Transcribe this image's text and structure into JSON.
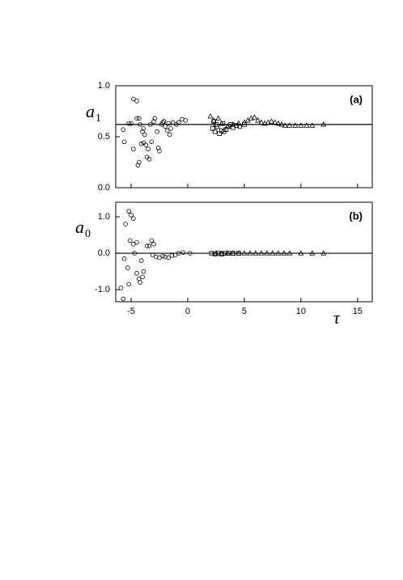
{
  "chart_data": [
    {
      "type": "scatter",
      "annotation": "(a)",
      "ylabel": "a",
      "ylabel_sub": "1",
      "xlim": [
        -6.36,
        16.3
      ],
      "ylim": [
        0,
        1
      ],
      "xticks": [
        -5,
        0,
        5,
        10,
        15
      ],
      "xtick_labels": false,
      "yticks": [
        {
          "value": 0,
          "label": "0.0"
        },
        {
          "value": 0.5,
          "label": "0.5"
        },
        {
          "value": 1,
          "label": "1.0"
        }
      ],
      "reference_line": 0.62,
      "series": [
        {
          "marker": "circle",
          "color": "#000000",
          "x": [
            -5.2,
            -5.0,
            -4.8,
            -4.5,
            -4.5,
            -4.8,
            -5.7,
            -5.6,
            -4.3,
            -4.2,
            -4.0,
            -3.9,
            -3.8,
            -4.1,
            -3.9,
            -3.7,
            -3.5,
            -4.3,
            -4.4,
            -3.6,
            -3.4,
            -3.3,
            -3.2,
            -3.0,
            -2.9,
            -2.7,
            -2.6,
            -2.5,
            -2.3,
            -2.2,
            -2.0,
            -1.8,
            -1.7,
            -1.5,
            -1.3,
            -1.0,
            -0.8,
            -0.5,
            -0.2,
            -1.6,
            -2.1
          ],
          "values": [
            0.63,
            0.63,
            0.87,
            0.85,
            0.68,
            0.38,
            0.57,
            0.45,
            0.68,
            0.62,
            0.55,
            0.58,
            0.52,
            0.43,
            0.44,
            0.42,
            0.38,
            0.25,
            0.22,
            0.3,
            0.28,
            0.62,
            0.45,
            0.65,
            0.68,
            0.55,
            0.39,
            0.36,
            0.62,
            0.64,
            0.6,
            0.56,
            0.63,
            0.58,
            0.64,
            0.62,
            0.64,
            0.67,
            0.66,
            0.52,
            0.65
          ]
        },
        {
          "marker": "square",
          "color": "#000000",
          "x": [
            2.2,
            2.4,
            2.6,
            2.8,
            3.0,
            3.2,
            3.4,
            3.6,
            2.5,
            3.8,
            4.0,
            4.3,
            4.6,
            5.0,
            2.3,
            3.1
          ],
          "values": [
            0.58,
            0.55,
            0.6,
            0.53,
            0.56,
            0.55,
            0.57,
            0.6,
            0.62,
            0.62,
            0.59,
            0.61,
            0.6,
            0.62,
            0.65,
            0.63
          ]
        },
        {
          "marker": "triangle",
          "color": "#000000",
          "x": [
            2.0,
            2.3,
            2.7,
            3.0,
            3.5,
            4.0,
            4.5,
            5.0,
            5.3,
            5.6,
            5.9,
            6.2,
            6.5,
            6.8,
            7.1,
            7.4,
            7.7,
            8.0,
            8.3,
            8.6,
            9.0,
            9.5,
            10.0,
            10.5,
            11.0,
            12.0
          ],
          "values": [
            0.7,
            0.66,
            0.68,
            0.63,
            0.6,
            0.62,
            0.63,
            0.64,
            0.66,
            0.68,
            0.69,
            0.66,
            0.64,
            0.63,
            0.64,
            0.65,
            0.64,
            0.63,
            0.62,
            0.61,
            0.61,
            0.61,
            0.61,
            0.61,
            0.61,
            0.62
          ]
        }
      ]
    },
    {
      "type": "scatter",
      "annotation": "(b)",
      "ylabel": "a",
      "ylabel_sub": "0",
      "xlabel": "τ",
      "xlim": [
        -6.36,
        16.3
      ],
      "ylim": [
        -1.33,
        1.4
      ],
      "xticks": [
        -5,
        0,
        5,
        10,
        15
      ],
      "xtick_labels": true,
      "yticks": [
        {
          "value": -1,
          "label": "-1.0"
        },
        {
          "value": 0,
          "label": "0.0"
        },
        {
          "value": 1,
          "label": "1.0"
        }
      ],
      "reference_line": 0,
      "series": [
        {
          "marker": "circle",
          "color": "#000000",
          "x": [
            -5.2,
            -5.0,
            -4.8,
            -5.5,
            -5.1,
            -4.8,
            -4.5,
            -5.6,
            -5.9,
            -5.7,
            -5.2,
            -5.3,
            -4.5,
            -4.3,
            -4.2,
            -4.0,
            -3.9,
            -4.1,
            -3.6,
            -3.4,
            -3.2,
            -3.0,
            -3.1,
            -2.8,
            -2.5,
            -2.2,
            -2.0,
            -1.7,
            -1.4,
            -1.1,
            -0.8,
            -0.4,
            0.2,
            -4.7
          ],
          "values": [
            1.15,
            1.05,
            0.95,
            0.8,
            0.35,
            0.25,
            0.3,
            -0.15,
            -0.95,
            -1.25,
            -0.85,
            -0.4,
            -0.55,
            -0.7,
            -0.8,
            -0.65,
            -0.5,
            -0.2,
            0.2,
            0.2,
            0.35,
            0.25,
            -0.05,
            -0.1,
            -0.12,
            -0.08,
            -0.1,
            -0.12,
            -0.06,
            -0.05,
            0.0,
            0.02,
            0.0,
            0.0
          ]
        },
        {
          "marker": "square",
          "color": "#000000",
          "x": [
            2.1,
            2.4,
            2.7,
            3.0,
            3.3,
            3.6,
            4.0,
            4.5
          ],
          "values": [
            0.0,
            -0.02,
            0.0,
            -0.02,
            0.0,
            0.0,
            0.0,
            0.0
          ]
        },
        {
          "marker": "triangle",
          "color": "#000000",
          "x": [
            2.5,
            3.0,
            3.5,
            4.0,
            4.5,
            5.0,
            5.5,
            6.0,
            6.5,
            7.0,
            7.5,
            8.0,
            8.5,
            9.0,
            10.0,
            11.0,
            12.0
          ],
          "values": [
            0.0,
            0.0,
            0.0,
            0.0,
            0.0,
            0.0,
            0.0,
            0.0,
            0.0,
            0.0,
            0.0,
            0.0,
            0.0,
            0.0,
            0.0,
            0.0,
            0.0
          ]
        }
      ]
    }
  ]
}
